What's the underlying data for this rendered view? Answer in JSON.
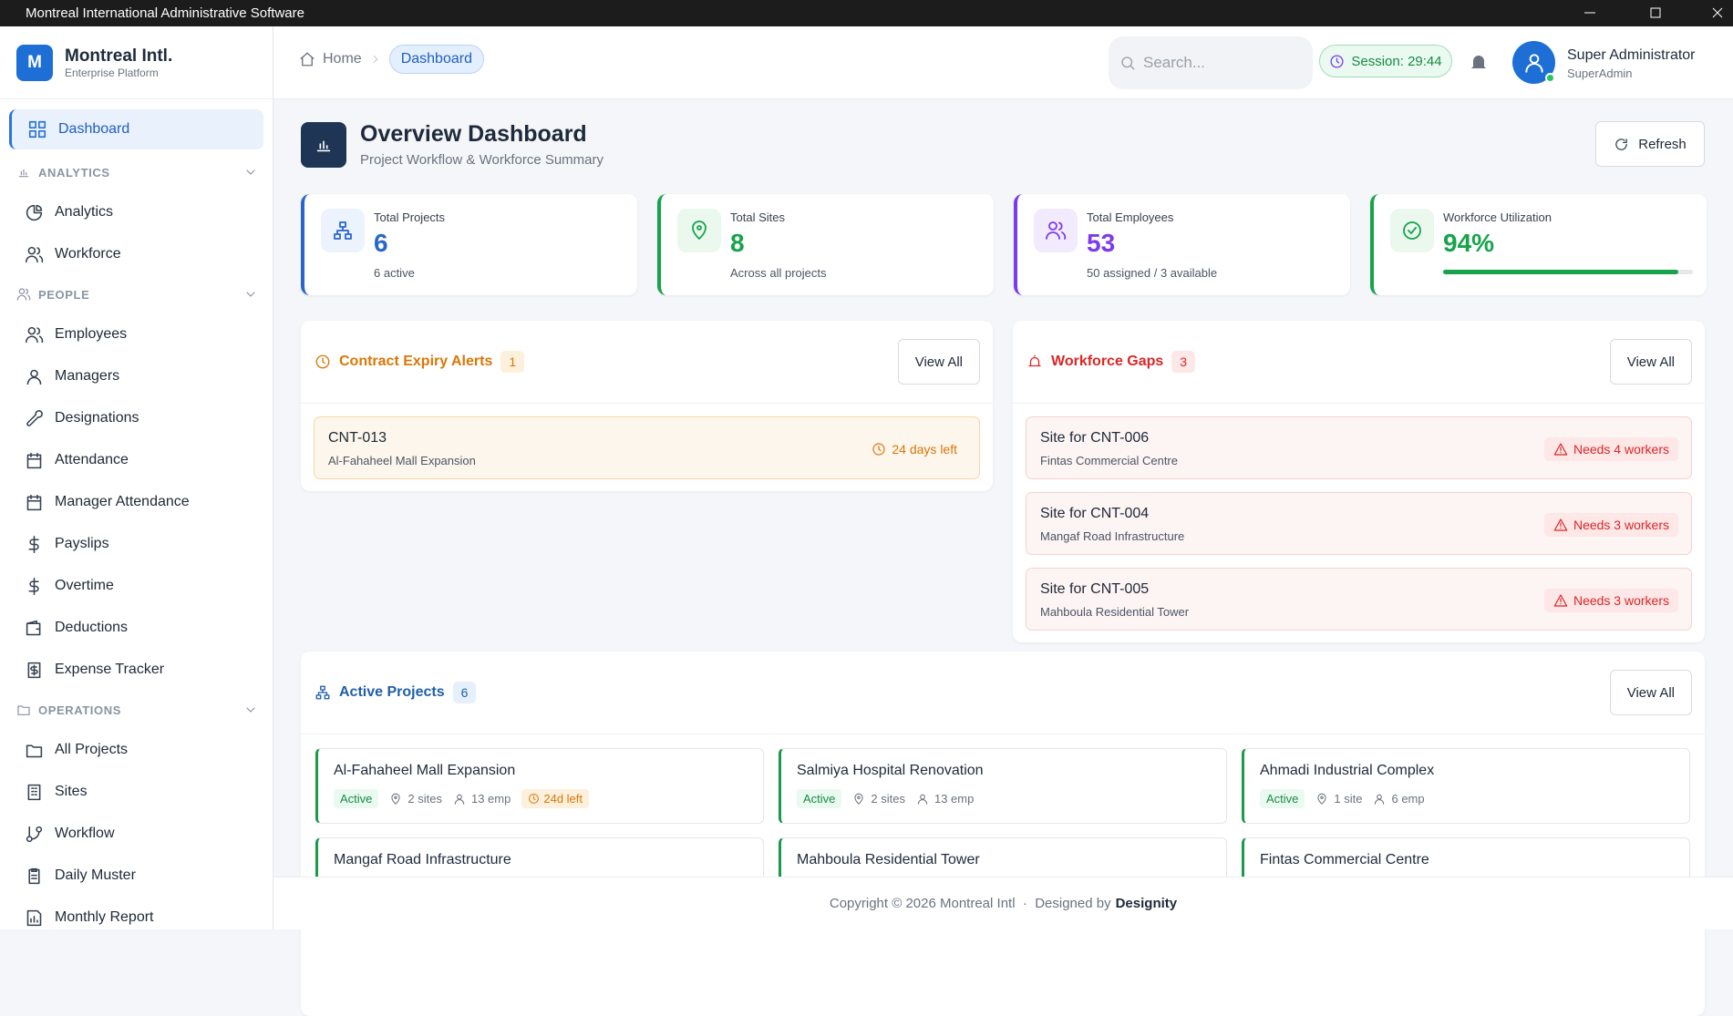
{
  "window": {
    "title": "Montreal International Administrative Software"
  },
  "brand": {
    "logo": "M",
    "name": "Montreal Intl.",
    "tagline": "Enterprise Platform"
  },
  "nav": {
    "top": "Dashboard",
    "sections": [
      {
        "title": "ANALYTICS",
        "items": [
          "Analytics",
          "Workforce"
        ]
      },
      {
        "title": "PEOPLE",
        "items": [
          "Employees",
          "Managers",
          "Designations",
          "Attendance",
          "Manager Attendance",
          "Payslips",
          "Overtime",
          "Deductions",
          "Expense Tracker"
        ]
      },
      {
        "title": "OPERATIONS",
        "items": [
          "All Projects",
          "Sites",
          "Workflow",
          "Daily Muster",
          "Monthly Report"
        ]
      }
    ]
  },
  "header": {
    "breadcrumb": [
      "Home",
      "Dashboard"
    ],
    "search_placeholder": "Search...",
    "session": "Session: 29:44",
    "user": {
      "name": "Super Administrator",
      "role": "SuperAdmin"
    }
  },
  "page": {
    "title": "Overview Dashboard",
    "subtitle": "Project Workflow & Workforce Summary",
    "refresh": "Refresh"
  },
  "stats": [
    {
      "label": "Total Projects",
      "value": 6,
      "note": "6 active"
    },
    {
      "label": "Total Sites",
      "value": 8,
      "note": "Across all projects"
    },
    {
      "label": "Total Employees",
      "value": 53,
      "note": "50 assigned / 3 available"
    },
    {
      "label": "Workforce Utilization",
      "value": 94,
      "value_label": "94%"
    }
  ],
  "contract_alerts": {
    "title": "Contract Expiry Alerts",
    "count": 1,
    "action": "View All",
    "items": [
      {
        "code": "CNT-013",
        "name": "Al-Fahaheel Mall Expansion",
        "badge": "24 days left"
      }
    ]
  },
  "workforce_gaps": {
    "title": "Workforce Gaps",
    "count": 3,
    "action": "View All",
    "items": [
      {
        "code": "Site for CNT-006",
        "name": "Fintas Commercial Centre",
        "badge": "Needs 4 workers"
      },
      {
        "code": "Site for CNT-004",
        "name": "Mangaf Road Infrastructure",
        "badge": "Needs 3 workers"
      },
      {
        "code": "Site for CNT-005",
        "name": "Mahboula Residential Tower",
        "badge": "Needs 3 workers"
      }
    ]
  },
  "active_projects": {
    "title": "Active Projects",
    "count": 6,
    "action": "View All",
    "items": [
      {
        "name": "Al-Fahaheel Mall Expansion",
        "status": "Active",
        "sites": "2 sites",
        "employees": "13 emp",
        "due": "24d left"
      },
      {
        "name": "Salmiya Hospital Renovation",
        "status": "Active",
        "sites": "2 sites",
        "employees": "13 emp"
      },
      {
        "name": "Ahmadi Industrial Complex",
        "status": "Active",
        "sites": "1 site",
        "employees": "6 emp"
      },
      {
        "name": "Mangaf Road Infrastructure"
      },
      {
        "name": "Mahboula Residential Tower"
      },
      {
        "name": "Fintas Commercial Centre"
      }
    ]
  },
  "footer": {
    "copyright": "Copyright © 2026 Montreal Intl  ·  Designed by",
    "designer": "Designity"
  }
}
